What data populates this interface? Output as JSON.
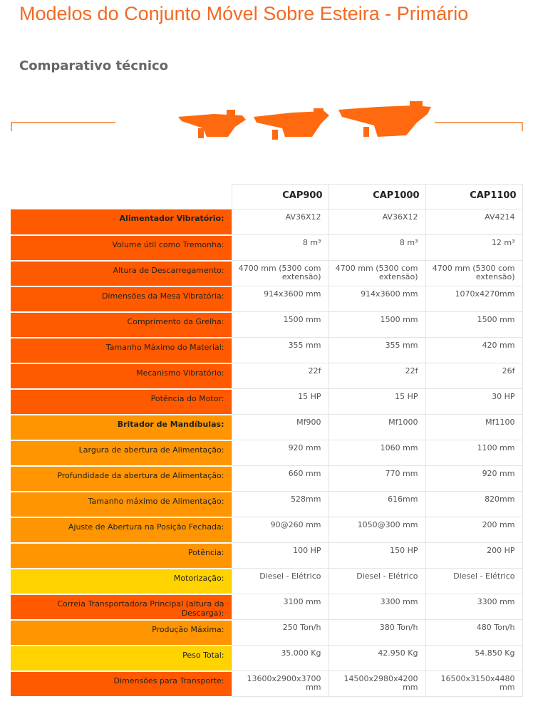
{
  "header": {
    "title": "Modelos do Conjunto Móvel Sobre Esteira - Primário",
    "subtitle": "Comparativo técnico"
  },
  "table": {
    "columns": [
      "CAP900",
      "CAP1000",
      "CAP1100"
    ],
    "rows": [
      {
        "label": "Alimentador Vibratório:",
        "section": true,
        "color": "#ff5a00",
        "values": [
          "AV36X12",
          "AV36X12",
          "AV4214"
        ]
      },
      {
        "label": "Volume útil como Tremonha:",
        "color": "#ff5a00",
        "values": [
          "8 m³",
          "8 m³",
          "12 m³"
        ]
      },
      {
        "label": "Altura de Descarregamento:",
        "color": "#ff5a00",
        "values": [
          "4700 mm (5300 com extensão)",
          "4700 mm (5300 com extensão)",
          "4700 mm (5300 com extensão)"
        ]
      },
      {
        "label": "Dimensões da Mesa Vibratória:",
        "color": "#ff5a00",
        "values": [
          "914x3600 mm",
          "914x3600 mm",
          "1070x4270mm"
        ]
      },
      {
        "label": "Comprimento da Grelha:",
        "color": "#ff5a00",
        "values": [
          "1500 mm",
          "1500 mm",
          "1500 mm"
        ]
      },
      {
        "label": "Tamanho Máximo do Material:",
        "color": "#ff5a00",
        "values": [
          "355 mm",
          "355 mm",
          "420 mm"
        ]
      },
      {
        "label": "Mecanismo Vibratório:",
        "color": "#ff5a00",
        "values": [
          "22f",
          "22f",
          "26f"
        ]
      },
      {
        "label": "Potência do Motor:",
        "color": "#ff5a00",
        "values": [
          "15 HP",
          "15 HP",
          "30 HP"
        ]
      },
      {
        "label": "Britador de Mandíbulas:",
        "section": true,
        "color": "#ff9500",
        "values": [
          "Mf900",
          "Mf1000",
          "Mf1100"
        ]
      },
      {
        "label": "Largura de abertura de Alimentação:",
        "color": "#ff9500",
        "values": [
          "920 mm",
          "1060 mm",
          "1100 mm"
        ]
      },
      {
        "label": "Profundidade da abertura de Alimentação:",
        "color": "#ff9500",
        "values": [
          "660 mm",
          "770 mm",
          "920 mm"
        ]
      },
      {
        "label": "Tamanho máximo de Alimentação:",
        "color": "#ff9500",
        "values": [
          "528mm",
          "616mm",
          "820mm"
        ]
      },
      {
        "label": "Ajuste de Abertura na Posição Fechada:",
        "color": "#ff9500",
        "values": [
          "90@260 mm",
          "1050@300 mm",
          "200 mm"
        ]
      },
      {
        "label": "Potência:",
        "color": "#ff9500",
        "values": [
          "100 HP",
          "150 HP",
          "200 HP"
        ]
      },
      {
        "label": "Motorização:",
        "color": "#ffd200",
        "values": [
          "Diesel - Elétrico",
          "Diesel - Elétrico",
          "Diesel - Elétrico"
        ]
      },
      {
        "label": "Correia Transportadora Principal (altura da Descarga):",
        "color": "#ff5a00",
        "values": [
          "3100 mm",
          "3300 mm",
          "3300 mm"
        ]
      },
      {
        "label": "Produção Máxima:",
        "color": "#ff9500",
        "values": [
          "250 Ton/h",
          "380 Ton/h",
          "480 Ton/h"
        ]
      },
      {
        "label": "Peso Total:",
        "color": "#ffd200",
        "values": [
          "35.000 Kg",
          "42.950 Kg",
          "54.850 Kg"
        ]
      },
      {
        "label": "Dimensões para Transporte:",
        "color": "#ff5a00",
        "values": [
          "13600x2900x3700 mm",
          "14500x2980x4200 mm",
          "16500x3150x4480 mm"
        ]
      }
    ]
  }
}
